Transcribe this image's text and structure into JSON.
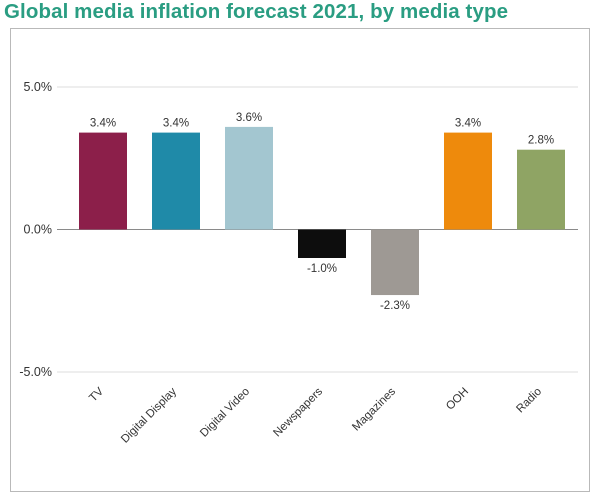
{
  "title": "Global media inflation forecast 2021, by media type",
  "chart_data": {
    "type": "bar",
    "title": "Global media inflation forecast 2021, by media type",
    "xlabel": "",
    "ylabel": "",
    "categories": [
      "TV",
      "Digital Display",
      "Digital Video",
      "Newspapers",
      "Magazines",
      "OOH",
      "Radio"
    ],
    "values": [
      3.4,
      3.4,
      3.6,
      -1.0,
      -2.3,
      3.4,
      2.8
    ],
    "value_labels": [
      "3.4%",
      "3.4%",
      "3.6%",
      "-1.0%",
      "-2.3%",
      "3.4%",
      "2.8%"
    ],
    "colors": [
      "#8c1f4a",
      "#1f8aa8",
      "#a3c6d0",
      "#0d0d0d",
      "#9e9994",
      "#ee8a0c",
      "#8fa464"
    ],
    "ylim": [
      -5.0,
      5.0
    ],
    "yticks": [
      5.0,
      0.0,
      -5.0
    ],
    "ytick_labels": [
      "5.0%",
      "0.0%",
      "-5.0%"
    ],
    "gridlines": true,
    "legend": "none"
  }
}
